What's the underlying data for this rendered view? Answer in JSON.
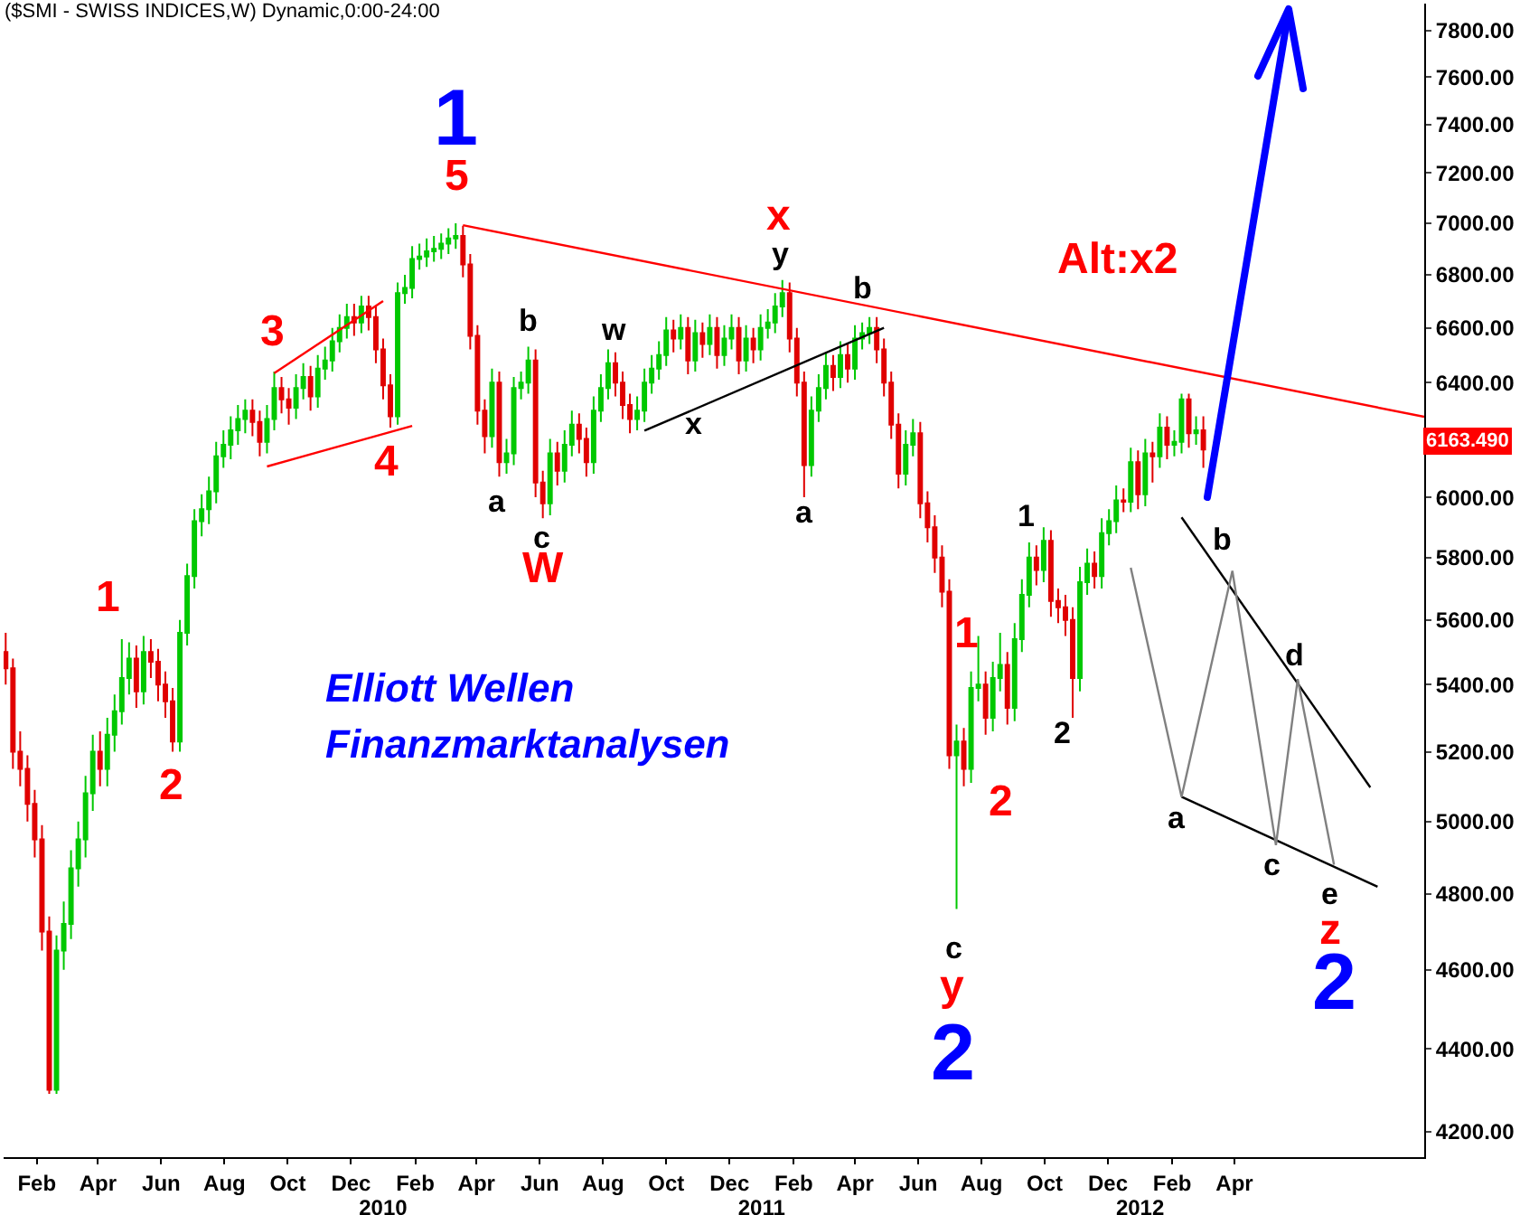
{
  "chart_data": {
    "type": "candlestick",
    "title": "($SMI - SWISS INDICES,W) Dynamic,0:00-24:00",
    "log": true,
    "colors": [
      "#e00000",
      "#e00000",
      "#e00000",
      "#e00000",
      "#e00000",
      "#e00000",
      "#e00000",
      "#00c800",
      "#00c800",
      "#00c800",
      "#00c800",
      "#00c800",
      "#00c800",
      "#e00000",
      "#00c800",
      "#00c800",
      "#00c800",
      "#00c800",
      "#e00000",
      "#00c800",
      "#e00000",
      "#e00000",
      "#e00000",
      "#e00000",
      "#00c800",
      "#00c800",
      "#00c800",
      "#00c800",
      "#00c800",
      "#00c800",
      "#00c800",
      "#00c800",
      "#00c800",
      "#00c800",
      "#e00000",
      "#e00000",
      "#00c800",
      "#00c800",
      "#e00000",
      "#e00000",
      "#00c800",
      "#00c800",
      "#e00000",
      "#00c800",
      "#00c800",
      "#00c800",
      "#00c800",
      "#00c800",
      "#e00000",
      "#00c800",
      "#e00000",
      "#e00000",
      "#e00000",
      "#e00000",
      "#00c800",
      "#00c800",
      "#00c800",
      "#00c800",
      "#00c800",
      "#00c800",
      "#00c800",
      "#00c800",
      "#00c800",
      "#e00000",
      "#e00000",
      "#e00000",
      "#e00000",
      "#00c800",
      "#e00000",
      "#00c800",
      "#00c800",
      "#00c800",
      "#00c800",
      "#e00000",
      "#e00000",
      "#00c800",
      "#e00000",
      "#00c800",
      "#00c800",
      "#e00000",
      "#e00000",
      "#00c800",
      "#00c800",
      "#00c800",
      "#e00000",
      "#e00000",
      "#e00000",
      "#00c800",
      "#00c800",
      "#00c800",
      "#00c800",
      "#00c800",
      "#e00000",
      "#00c800",
      "#e00000",
      "#00c800",
      "#e00000",
      "#00c800",
      "#e00000",
      "#00c800",
      "#00c800",
      "#e00000",
      "#00c800",
      "#e00000",
      "#00c800",
      "#00c800",
      "#00c800",
      "#00c800",
      "#e00000",
      "#e00000",
      "#e00000",
      "#00c800",
      "#00c800",
      "#00c800",
      "#e00000",
      "#00c800",
      "#e00000",
      "#00c800",
      "#00c800",
      "#00c800",
      "#e00000",
      "#e00000",
      "#e00000",
      "#e00000",
      "#00c800",
      "#00c800",
      "#e00000",
      "#e00000",
      "#e00000",
      "#e00000",
      "#e00000",
      "#00c800",
      "#e00000",
      "#00c800",
      "#00c800",
      "#e00000",
      "#00c800",
      "#00c800",
      "#e00000",
      "#00c800",
      "#00c800",
      "#00c800",
      "#e00000",
      "#00c800",
      "#e00000",
      "#e00000",
      "#e00000",
      "#e00000",
      "#00c800",
      "#00c800",
      "#e00000",
      "#00c800",
      "#00c800",
      "#00c800",
      "#e00000",
      "#00c800",
      "#e00000",
      "#00c800",
      "#e00000",
      "#00c800",
      "#e00000",
      "#00c800",
      "#00c800",
      "#e00000",
      "#00c800",
      "#e00000"
    ],
    "x": [
      "2009-01-02",
      "2009-01-09",
      "2009-01-16",
      "2009-01-23",
      "2009-01-30",
      "2009-02-06",
      "2009-02-13",
      "2009-02-20",
      "2009-02-27",
      "2009-03-06",
      "2009-03-13",
      "2009-03-20",
      "2009-03-27",
      "2009-04-03",
      "2009-04-10",
      "2009-04-17",
      "2009-04-24",
      "2009-05-01",
      "2009-05-08",
      "2009-05-15",
      "2009-05-22",
      "2009-05-29",
      "2009-06-05",
      "2009-06-12",
      "2009-06-19",
      "2009-06-26",
      "2009-07-03",
      "2009-07-10",
      "2009-07-17",
      "2009-07-24",
      "2009-07-31",
      "2009-08-07",
      "2009-08-14",
      "2009-08-21",
      "2009-08-28",
      "2009-09-04",
      "2009-09-11",
      "2009-09-18",
      "2009-09-25",
      "2009-10-02",
      "2009-10-09",
      "2009-10-16",
      "2009-10-23",
      "2009-10-30",
      "2009-11-06",
      "2009-11-13",
      "2009-11-20",
      "2009-11-27",
      "2009-12-04",
      "2009-12-11",
      "2009-12-18",
      "2009-12-25",
      "2010-01-01",
      "2010-01-08",
      "2010-01-15",
      "2010-01-22",
      "2010-01-29",
      "2010-02-05",
      "2010-02-12",
      "2010-02-19",
      "2010-02-26",
      "2010-03-05",
      "2010-03-12",
      "2010-03-19",
      "2010-03-26",
      "2010-04-02",
      "2010-04-09",
      "2010-04-16",
      "2010-04-23",
      "2010-04-30",
      "2010-05-07",
      "2010-05-14",
      "2010-05-21",
      "2010-05-28",
      "2010-06-04",
      "2010-06-11",
      "2010-06-18",
      "2010-06-25",
      "2010-07-02",
      "2010-07-09",
      "2010-07-16",
      "2010-07-23",
      "2010-07-30",
      "2010-08-06",
      "2010-08-13",
      "2010-08-20",
      "2010-08-27",
      "2010-09-03",
      "2010-09-10",
      "2010-09-17",
      "2010-09-24",
      "2010-10-01",
      "2010-10-08",
      "2010-10-15",
      "2010-10-22",
      "2010-10-29",
      "2010-11-05",
      "2010-11-12",
      "2010-11-19",
      "2010-11-26",
      "2010-12-03",
      "2010-12-10",
      "2010-12-17",
      "2010-12-24",
      "2010-12-31",
      "2011-01-07",
      "2011-01-14",
      "2011-01-21",
      "2011-01-28",
      "2011-02-04",
      "2011-02-11",
      "2011-02-18",
      "2011-02-25",
      "2011-03-04",
      "2011-03-11",
      "2011-03-18",
      "2011-03-25",
      "2011-04-01",
      "2011-04-08",
      "2011-04-15",
      "2011-04-22",
      "2011-04-29",
      "2011-05-06",
      "2011-05-13",
      "2011-05-20",
      "2011-05-27",
      "2011-06-03",
      "2011-06-10",
      "2011-06-17",
      "2011-06-24",
      "2011-07-01",
      "2011-07-08",
      "2011-07-15",
      "2011-07-22",
      "2011-07-29",
      "2011-08-05",
      "2011-08-12",
      "2011-08-19",
      "2011-08-26",
      "2011-09-02",
      "2011-09-09",
      "2011-09-16",
      "2011-09-23",
      "2011-09-30",
      "2011-10-07",
      "2011-10-14",
      "2011-10-21",
      "2011-10-28",
      "2011-11-04",
      "2011-11-11",
      "2011-11-18",
      "2011-11-25",
      "2011-12-02",
      "2011-12-09",
      "2011-12-16",
      "2011-12-23",
      "2011-12-30",
      "2012-01-06",
      "2012-01-13",
      "2012-01-20",
      "2012-01-27",
      "2012-02-03",
      "2012-02-10",
      "2012-02-17",
      "2012-02-24",
      "2012-03-02"
    ],
    "ohlc": [
      [
        5500,
        5560,
        5400,
        5450
      ],
      [
        5450,
        5480,
        5150,
        5200
      ],
      [
        5200,
        5260,
        5100,
        5150
      ],
      [
        5150,
        5190,
        5000,
        5050
      ],
      [
        5050,
        5090,
        4900,
        4950
      ],
      [
        4950,
        4990,
        4650,
        4700
      ],
      [
        4700,
        4740,
        4290,
        4300
      ],
      [
        4300,
        4690,
        4290,
        4650
      ],
      [
        4650,
        4780,
        4600,
        4720
      ],
      [
        4720,
        4920,
        4680,
        4870
      ],
      [
        4870,
        5000,
        4820,
        4950
      ],
      [
        4950,
        5130,
        4900,
        5080
      ],
      [
        5080,
        5250,
        5030,
        5200
      ],
      [
        5200,
        5260,
        5100,
        5150
      ],
      [
        5150,
        5300,
        5100,
        5250
      ],
      [
        5250,
        5370,
        5200,
        5320
      ],
      [
        5320,
        5540,
        5280,
        5420
      ],
      [
        5420,
        5530,
        5370,
        5480
      ],
      [
        5480,
        5520,
        5330,
        5380
      ],
      [
        5380,
        5550,
        5340,
        5500
      ],
      [
        5500,
        5540,
        5420,
        5470
      ],
      [
        5470,
        5510,
        5350,
        5400
      ],
      [
        5400,
        5440,
        5300,
        5350
      ],
      [
        5350,
        5390,
        5200,
        5230
      ],
      [
        5230,
        5600,
        5200,
        5560
      ],
      [
        5560,
        5780,
        5520,
        5740
      ],
      [
        5740,
        5960,
        5700,
        5920
      ],
      [
        5920,
        6010,
        5870,
        5960
      ],
      [
        5960,
        6070,
        5910,
        6020
      ],
      [
        6020,
        6190,
        5980,
        6140
      ],
      [
        6140,
        6230,
        6100,
        6180
      ],
      [
        6180,
        6280,
        6130,
        6230
      ],
      [
        6230,
        6320,
        6180,
        6270
      ],
      [
        6270,
        6340,
        6220,
        6300
      ],
      [
        6300,
        6340,
        6210,
        6260
      ],
      [
        6260,
        6300,
        6140,
        6190
      ],
      [
        6190,
        6320,
        6150,
        6270
      ],
      [
        6270,
        6440,
        6230,
        6380
      ],
      [
        6380,
        6420,
        6290,
        6340
      ],
      [
        6340,
        6380,
        6250,
        6310
      ],
      [
        6310,
        6430,
        6270,
        6380
      ],
      [
        6380,
        6470,
        6340,
        6420
      ],
      [
        6420,
        6460,
        6300,
        6350
      ],
      [
        6350,
        6500,
        6310,
        6450
      ],
      [
        6450,
        6530,
        6410,
        6480
      ],
      [
        6480,
        6600,
        6440,
        6550
      ],
      [
        6550,
        6650,
        6510,
        6600
      ],
      [
        6600,
        6690,
        6560,
        6640
      ],
      [
        6640,
        6690,
        6570,
        6620
      ],
      [
        6620,
        6720,
        6580,
        6680
      ],
      [
        6680,
        6720,
        6590,
        6640
      ],
      [
        6640,
        6680,
        6470,
        6520
      ],
      [
        6520,
        6560,
        6340,
        6390
      ],
      [
        6390,
        6430,
        6240,
        6280
      ],
      [
        6280,
        6770,
        6250,
        6730
      ],
      [
        6730,
        6800,
        6690,
        6750
      ],
      [
        6750,
        6910,
        6710,
        6860
      ],
      [
        6860,
        6920,
        6820,
        6870
      ],
      [
        6870,
        6940,
        6830,
        6890
      ],
      [
        6890,
        6950,
        6850,
        6900
      ],
      [
        6900,
        6960,
        6860,
        6920
      ],
      [
        6920,
        6980,
        6880,
        6940
      ],
      [
        6940,
        7000,
        6900,
        6950
      ],
      [
        6950,
        6990,
        6790,
        6840
      ],
      [
        6840,
        6880,
        6520,
        6570
      ],
      [
        6570,
        6610,
        6250,
        6300
      ],
      [
        6300,
        6340,
        6150,
        6210
      ],
      [
        6210,
        6450,
        6170,
        6400
      ],
      [
        6400,
        6440,
        6070,
        6120
      ],
      [
        6120,
        6200,
        6080,
        6150
      ],
      [
        6150,
        6420,
        6110,
        6380
      ],
      [
        6380,
        6440,
        6340,
        6400
      ],
      [
        6400,
        6530,
        6360,
        6480
      ],
      [
        6480,
        6520,
        6000,
        6050
      ],
      [
        6050,
        6090,
        5930,
        5980
      ],
      [
        5980,
        6200,
        5940,
        6150
      ],
      [
        6150,
        6190,
        6040,
        6090
      ],
      [
        6090,
        6230,
        6050,
        6180
      ],
      [
        6180,
        6300,
        6140,
        6250
      ],
      [
        6250,
        6290,
        6150,
        6200
      ],
      [
        6200,
        6240,
        6070,
        6120
      ],
      [
        6120,
        6350,
        6080,
        6300
      ],
      [
        6300,
        6430,
        6260,
        6380
      ],
      [
        6380,
        6520,
        6340,
        6470
      ],
      [
        6470,
        6510,
        6350,
        6400
      ],
      [
        6400,
        6440,
        6270,
        6320
      ],
      [
        6320,
        6360,
        6220,
        6270
      ],
      [
        6270,
        6350,
        6230,
        6300
      ],
      [
        6300,
        6450,
        6260,
        6400
      ],
      [
        6400,
        6500,
        6360,
        6450
      ],
      [
        6450,
        6550,
        6410,
        6500
      ],
      [
        6500,
        6640,
        6460,
        6590
      ],
      [
        6590,
        6630,
        6510,
        6560
      ],
      [
        6560,
        6650,
        6520,
        6600
      ],
      [
        6600,
        6640,
        6430,
        6480
      ],
      [
        6480,
        6630,
        6440,
        6580
      ],
      [
        6580,
        6620,
        6490,
        6540
      ],
      [
        6540,
        6650,
        6500,
        6600
      ],
      [
        6600,
        6640,
        6450,
        6500
      ],
      [
        6500,
        6610,
        6460,
        6560
      ],
      [
        6560,
        6650,
        6520,
        6600
      ],
      [
        6600,
        6640,
        6430,
        6480
      ],
      [
        6480,
        6610,
        6440,
        6560
      ],
      [
        6560,
        6600,
        6470,
        6520
      ],
      [
        6520,
        6650,
        6480,
        6600
      ],
      [
        6600,
        6670,
        6560,
        6620
      ],
      [
        6620,
        6730,
        6580,
        6680
      ],
      [
        6680,
        6780,
        6640,
        6730
      ],
      [
        6730,
        6770,
        6510,
        6560
      ],
      [
        6560,
        6600,
        6350,
        6400
      ],
      [
        6400,
        6440,
        6000,
        6110
      ],
      [
        6110,
        6350,
        6070,
        6300
      ],
      [
        6300,
        6430,
        6260,
        6380
      ],
      [
        6380,
        6510,
        6340,
        6460
      ],
      [
        6460,
        6500,
        6370,
        6420
      ],
      [
        6420,
        6550,
        6380,
        6500
      ],
      [
        6500,
        6540,
        6400,
        6450
      ],
      [
        6450,
        6610,
        6410,
        6560
      ],
      [
        6560,
        6620,
        6520,
        6580
      ],
      [
        6580,
        6640,
        6540,
        6600
      ],
      [
        6600,
        6640,
        6470,
        6520
      ],
      [
        6520,
        6560,
        6350,
        6400
      ],
      [
        6400,
        6440,
        6200,
        6250
      ],
      [
        6250,
        6290,
        6030,
        6080
      ],
      [
        6080,
        6230,
        6040,
        6180
      ],
      [
        6180,
        6270,
        6140,
        6220
      ],
      [
        6220,
        6260,
        5930,
        5980
      ],
      [
        5980,
        6020,
        5850,
        5900
      ],
      [
        5900,
        5940,
        5750,
        5800
      ],
      [
        5800,
        5840,
        5640,
        5690
      ],
      [
        5690,
        5730,
        5150,
        5190
      ],
      [
        5190,
        5280,
        4760,
        5230
      ],
      [
        5230,
        5270,
        5100,
        5150
      ],
      [
        5150,
        5440,
        5110,
        5390
      ],
      [
        5390,
        5550,
        5350,
        5400
      ],
      [
        5400,
        5440,
        5250,
        5300
      ],
      [
        5300,
        5470,
        5260,
        5420
      ],
      [
        5420,
        5560,
        5380,
        5460
      ],
      [
        5460,
        5500,
        5280,
        5330
      ],
      [
        5330,
        5590,
        5290,
        5540
      ],
      [
        5540,
        5730,
        5500,
        5680
      ],
      [
        5680,
        5850,
        5640,
        5800
      ],
      [
        5800,
        5840,
        5710,
        5760
      ],
      [
        5760,
        5900,
        5720,
        5855
      ],
      [
        5855,
        5890,
        5610,
        5660
      ],
      [
        5660,
        5700,
        5590,
        5640
      ],
      [
        5640,
        5680,
        5550,
        5600
      ],
      [
        5600,
        5640,
        5300,
        5420
      ],
      [
        5420,
        5770,
        5380,
        5720
      ],
      [
        5720,
        5830,
        5680,
        5780
      ],
      [
        5780,
        5820,
        5700,
        5740
      ],
      [
        5740,
        5930,
        5700,
        5880
      ],
      [
        5880,
        5960,
        5840,
        5920
      ],
      [
        5920,
        6040,
        5880,
        5990
      ],
      [
        5990,
        6030,
        5950,
        5985
      ],
      [
        5985,
        6170,
        5950,
        6120
      ],
      [
        6120,
        6160,
        5960,
        6010
      ],
      [
        6010,
        6200,
        5970,
        6150
      ],
      [
        6150,
        6190,
        6050,
        6140
      ],
      [
        6140,
        6290,
        6100,
        6240
      ],
      [
        6240,
        6280,
        6130,
        6180
      ],
      [
        6180,
        6230,
        6140,
        6190
      ],
      [
        6190,
        6360,
        6150,
        6340
      ],
      [
        6340,
        6360,
        6170,
        6220
      ],
      [
        6220,
        6280,
        6180,
        6230
      ],
      [
        6230,
        6280,
        6100,
        6163.49
      ]
    ],
    "series": [
      {
        "type": "line",
        "color": "#ff0000",
        "x": [
          "2010-03-19",
          "2012-10-01"
        ],
        "values": [
          6992,
          6278
        ]
      },
      {
        "type": "line",
        "color": "#ff0000",
        "x": [
          "2009-09-18",
          "2010-01-01"
        ],
        "values": [
          6434,
          6700
        ]
      },
      {
        "type": "line",
        "color": "#ff0000",
        "x": [
          "2009-09-11",
          "2010-01-29"
        ],
        "values": [
          6105,
          6246
        ]
      },
      {
        "type": "line",
        "color": "#000000",
        "x": [
          "2010-09-10",
          "2011-04-29"
        ],
        "values": [
          6229,
          6600
        ]
      },
      {
        "type": "line",
        "color": "#000000",
        "x": [
          "2012-02-10",
          "2012-08-10"
        ],
        "values": [
          5933,
          5097
        ]
      },
      {
        "type": "line",
        "color": "#000000",
        "x": [
          "2012-02-10",
          "2012-08-17"
        ],
        "values": [
          5070,
          4820
        ]
      },
      {
        "type": "line",
        "color": "#808080",
        "x": [
          "2011-12-23",
          "2012-02-10",
          "2012-03-30",
          "2012-05-11",
          "2012-06-01",
          "2012-07-06"
        ],
        "values": [
          5767,
          5070,
          5757,
          4934,
          5417,
          4880
        ]
      }
    ],
    "annotations": [
      "1",
      "5",
      "3",
      "4",
      "1",
      "2",
      "b",
      "a",
      "c",
      "W",
      "w",
      "x",
      "x",
      "y",
      "b",
      "a",
      "1",
      "c",
      "y",
      "2",
      "2",
      "1",
      "2",
      "Alt:x2",
      "b",
      "d",
      "a",
      "c",
      "e",
      "z",
      "2",
      "Elliott Wellen",
      "Finanzmarktanalysen",
      "6163.490"
    ],
    "xlim": [
      "2008-12-31",
      "2012-10-01"
    ],
    "xticks": [
      {
        "value": "2009-02-01",
        "label": "Feb"
      },
      {
        "value": "2009-04-01",
        "label": "Apr"
      },
      {
        "value": "2009-06-01",
        "label": "Jun"
      },
      {
        "value": "2009-08-01",
        "label": "Aug"
      },
      {
        "value": "2009-10-01",
        "label": "Oct"
      },
      {
        "value": "2009-12-01",
        "label": "Dec"
      },
      {
        "value": "2010-02-01",
        "label": "Feb"
      },
      {
        "value": "2010-04-01",
        "label": "Apr"
      },
      {
        "value": "2010-06-01",
        "label": "Jun"
      },
      {
        "value": "2010-08-01",
        "label": "Aug"
      },
      {
        "value": "2010-10-01",
        "label": "Oct"
      },
      {
        "value": "2010-12-01",
        "label": "Dec"
      },
      {
        "value": "2011-02-01",
        "label": "Feb"
      },
      {
        "value": "2011-04-01",
        "label": "Apr"
      },
      {
        "value": "2011-06-01",
        "label": "Jun"
      },
      {
        "value": "2011-08-01",
        "label": "Aug"
      },
      {
        "value": "2011-10-01",
        "label": "Oct"
      },
      {
        "value": "2011-12-01",
        "label": "Dec"
      },
      {
        "value": "2012-02-01",
        "label": "Feb"
      },
      {
        "value": "2012-04-01",
        "label": "Apr"
      }
    ],
    "x2lim": [
      "2008-12-31",
      "2012-10-01"
    ],
    "x2ticks": [
      {
        "value": "2010-01-01",
        "label": "2010"
      },
      {
        "value": "2011-01-01",
        "label": "2011"
      },
      {
        "value": "2012-01-01",
        "label": "2012"
      }
    ],
    "ylim": [
      4140,
      7920
    ],
    "yticks": [
      {
        "value": 4200,
        "label": "4200.00"
      },
      {
        "value": 4400,
        "label": "4400.00"
      },
      {
        "value": 4600,
        "label": "4600.00"
      },
      {
        "value": 4800,
        "label": "4800.00"
      },
      {
        "value": 5000,
        "label": "5000.00"
      },
      {
        "value": 5200,
        "label": "5200.00"
      },
      {
        "value": 5400,
        "label": "5400.00"
      },
      {
        "value": 5600,
        "label": "5600.00"
      },
      {
        "value": 5800,
        "label": "5800.00"
      },
      {
        "value": 6000,
        "label": "6000.00"
      },
      {
        "value": 6200,
        "label": null
      },
      {
        "value": 6400,
        "label": "6400.00"
      },
      {
        "value": 6600,
        "label": "6600.00"
      },
      {
        "value": 6800,
        "label": "6800.00"
      },
      {
        "value": 7000,
        "label": "7000.00"
      },
      {
        "value": 7200,
        "label": "7200.00"
      },
      {
        "value": 7400,
        "label": "7400.00"
      },
      {
        "value": 7600,
        "label": "7600.00"
      },
      {
        "value": 7800,
        "label": "7800.00"
      }
    ]
  }
}
